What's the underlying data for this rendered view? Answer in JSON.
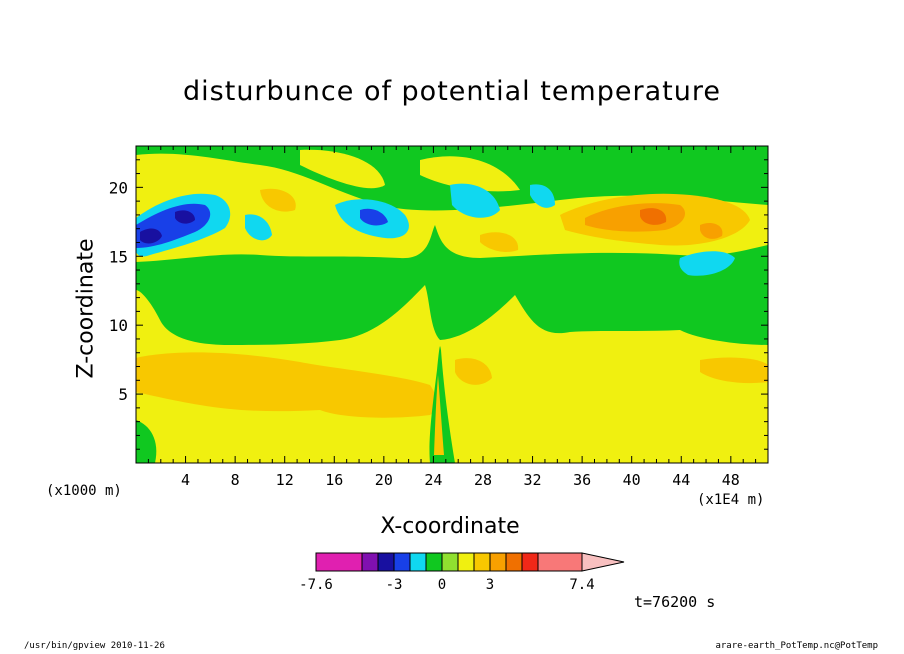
{
  "chart_data": {
    "type": "heatmap",
    "title": "disturbunce of potential temperature",
    "xlabel": "X-coordinate",
    "ylabel": "Z-coordinate",
    "x_unit_label": "(x1000 m)",
    "x_scale_label": "(x1E4 m)",
    "xlim": [
      0,
      51
    ],
    "ylim": [
      0,
      23
    ],
    "x_ticks": [
      4,
      8,
      12,
      16,
      20,
      24,
      28,
      32,
      36,
      40,
      44,
      48
    ],
    "y_ticks": [
      5,
      10,
      15,
      20
    ],
    "colorbar": {
      "tick_labels": [
        "-7.6",
        "-3",
        "0",
        "3",
        "7.4"
      ],
      "tick_values": [
        -7.6,
        -3,
        0,
        3,
        7.4
      ],
      "colors": [
        "#e020b0",
        "#8010b0",
        "#1810a0",
        "#1840e8",
        "#10d8f0",
        "#10c820",
        "#90e030",
        "#f0f010",
        "#f8c800",
        "#f8a000",
        "#f07000",
        "#f02818",
        "#f87878",
        "#f8c0c0"
      ]
    },
    "fields": [
      {
        "region": "lower layer",
        "x_range": [
          0,
          51
        ],
        "z_range": [
          0,
          9
        ],
        "value": 0.5,
        "color": "yellow"
      },
      {
        "region": "lower-left warm anomaly",
        "x_center": 7,
        "z_center": 6.5,
        "value": 1.5,
        "color": "light orange"
      },
      {
        "region": "middle green band",
        "x_range": [
          2,
          51
        ],
        "z_range": [
          9,
          16
        ],
        "value": -0.5,
        "color": "green"
      },
      {
        "region": "upper-left cold core",
        "x_center": 3.5,
        "z_center": 17,
        "value": -4,
        "color": "blue"
      },
      {
        "region": "upper-middle cold patches",
        "x_center": 19,
        "z_center": 18,
        "value": -1.5,
        "color": "cyan"
      },
      {
        "region": "upper-right warm band",
        "x_center": 43,
        "z_center": 18,
        "value": 2.5,
        "color": "orange"
      }
    ],
    "grid": false,
    "legend": "bottom"
  },
  "time_label": "t=76200 s",
  "footer": {
    "left": "/usr/bin/gpview   2010-11-26",
    "right": "arare-earth_PotTemp.nc@PotTemp"
  }
}
